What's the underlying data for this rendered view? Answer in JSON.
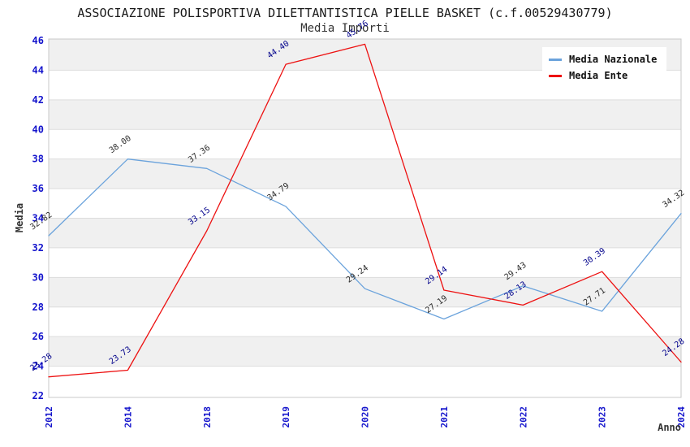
{
  "title": "ASSOCIAZIONE POLISPORTIVA DILETTANTISTICA PIELLE BASKET (c.f.00529430779)",
  "subtitle": "Media Importi",
  "legend": {
    "items": [
      {
        "label": "Media Nazionale",
        "color": "#6BA3DC"
      },
      {
        "label": "Media Ente",
        "color": "#ED1111"
      }
    ]
  },
  "colors": {
    "tick_label": "#1414CC",
    "band_fill": "#F0F0F0",
    "gridline": "#DDDDDD",
    "plot_border": "#C8C8C8",
    "axis_title": "#333333"
  },
  "chart_data": {
    "type": "line",
    "title": "ASSOCIAZIONE POLISPORTIVA DILETTANTISTICA PIELLE BASKET (c.f.00529430779)",
    "subtitle": "Media Importi",
    "xlabel": "Anno",
    "ylabel": "Media",
    "categories": [
      "2012",
      "2014",
      "2018",
      "2019",
      "2020",
      "2021",
      "2022",
      "2023",
      "2024"
    ],
    "series": [
      {
        "name": "Media Nazionale",
        "color": "#6BA3DC",
        "label_color": "#2B2B2B",
        "values": [
          32.82,
          38.0,
          37.36,
          34.79,
          29.24,
          27.19,
          29.43,
          27.71,
          34.32
        ]
      },
      {
        "name": "Media Ente",
        "color": "#ED1111",
        "label_color": "#00008B",
        "values": [
          23.28,
          23.73,
          33.15,
          44.4,
          45.76,
          29.14,
          28.13,
          30.39,
          24.28
        ]
      }
    ],
    "ylim": [
      22,
      46
    ],
    "ytick_step": 2,
    "grid": "horizontal-bands",
    "legend_position": "top-right",
    "point_labels_rotation_deg": -35
  }
}
